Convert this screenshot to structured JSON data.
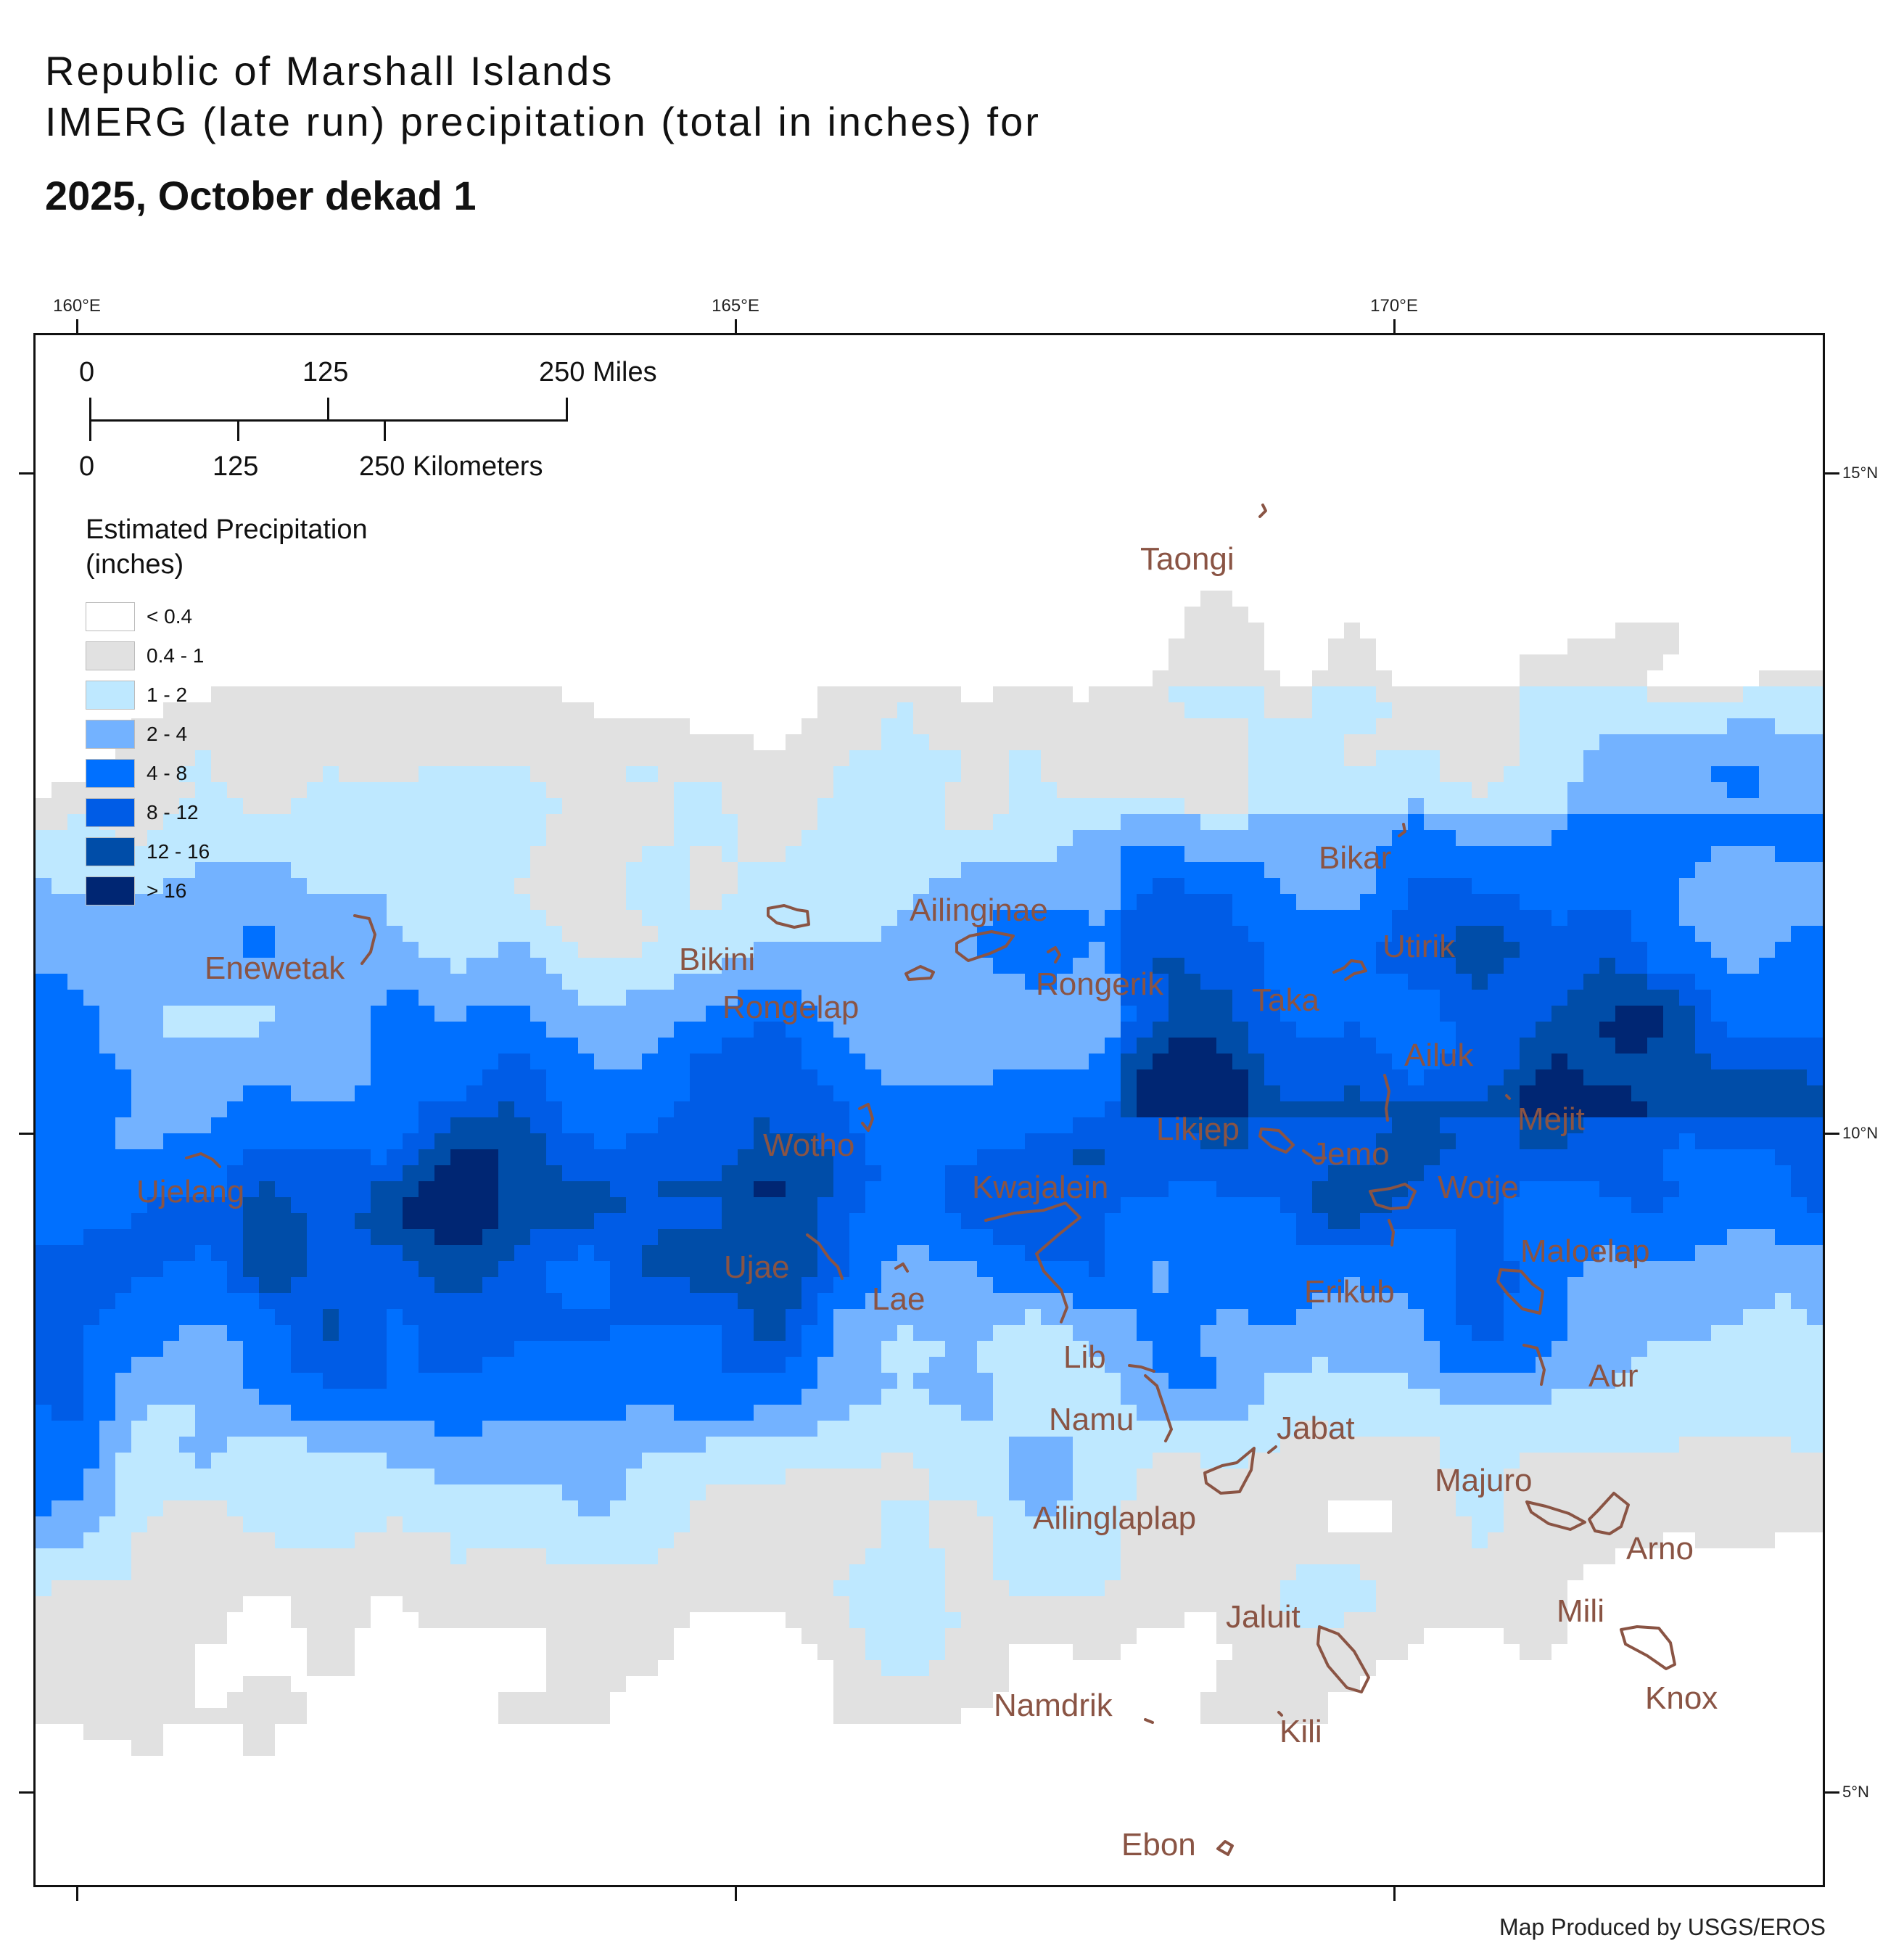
{
  "title": {
    "line1": "Republic of Marshall Islands",
    "line2": "IMERG (late run) precipitation (total in inches) for",
    "line3": "2025, October dekad 1"
  },
  "axes": {
    "longitude_labels": [
      "160°E",
      "165°E",
      "170°E"
    ],
    "latitude_labels": [
      "15°N",
      "10°N",
      "5°N"
    ]
  },
  "scale_bar": {
    "miles": [
      "0",
      "125",
      "250 Miles"
    ],
    "kilometers": [
      "0",
      "125",
      "250 Kilometers"
    ]
  },
  "legend": {
    "title_line1": "Estimated Precipitation",
    "title_line2": "(inches)",
    "items": [
      {
        "label": "< 0.4",
        "color": "#ffffff"
      },
      {
        "label": "0.4 - 1",
        "color": "#e1e1e1"
      },
      {
        "label": "1 - 2",
        "color": "#bee8ff"
      },
      {
        "label": "2 - 4",
        "color": "#73b2ff"
      },
      {
        "label": "4 - 8",
        "color": "#0070ff"
      },
      {
        "label": "8 - 12",
        "color": "#005ce6"
      },
      {
        "label": "12 - 16",
        "color": "#004da8"
      },
      {
        "label": "> 16",
        "color": "#002673"
      }
    ]
  },
  "places": [
    {
      "name": "Taongi"
    },
    {
      "name": "Bikar"
    },
    {
      "name": "Ailinginae"
    },
    {
      "name": "Utirik"
    },
    {
      "name": "Enewetak"
    },
    {
      "name": "Bikini"
    },
    {
      "name": "Rongerik"
    },
    {
      "name": "Taka"
    },
    {
      "name": "Rongelap"
    },
    {
      "name": "Ailuk"
    },
    {
      "name": "Mejit"
    },
    {
      "name": "Likiep"
    },
    {
      "name": "Wotho"
    },
    {
      "name": "Jemo"
    },
    {
      "name": "Ujelang"
    },
    {
      "name": "Kwajalein"
    },
    {
      "name": "Wotje"
    },
    {
      "name": "Maloelap"
    },
    {
      "name": "Ujae"
    },
    {
      "name": "Erikub"
    },
    {
      "name": "Lae"
    },
    {
      "name": "Lib"
    },
    {
      "name": "Aur"
    },
    {
      "name": "Namu"
    },
    {
      "name": "Jabat"
    },
    {
      "name": "Majuro"
    },
    {
      "name": "Ailinglaplap"
    },
    {
      "name": "Arno"
    },
    {
      "name": "Mili"
    },
    {
      "name": "Jaluit"
    },
    {
      "name": "Knox"
    },
    {
      "name": "Namdrik"
    },
    {
      "name": "Kili"
    },
    {
      "name": "Ebon"
    }
  ],
  "credit": "Map Produced by USGS/EROS"
}
